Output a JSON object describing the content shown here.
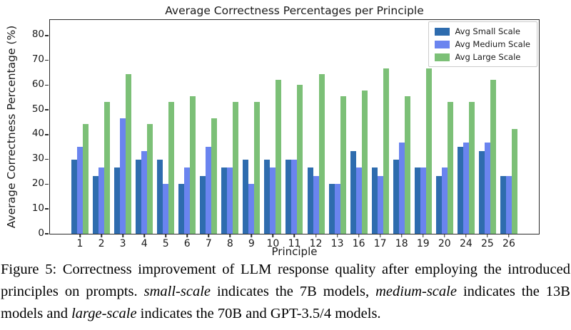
{
  "chart_data": {
    "type": "bar",
    "title": "Average Correctness Percentages per Principle",
    "xlabel": "Principle",
    "ylabel": "Average Correctness Percentage (%)",
    "categories": [
      "1",
      "2",
      "3",
      "4",
      "5",
      "6",
      "7",
      "8",
      "9",
      "10",
      "11",
      "12",
      "13",
      "16",
      "17",
      "18",
      "19",
      "20",
      "24",
      "25",
      "26"
    ],
    "series": [
      {
        "name": "Avg Small Scale",
        "color": "#2e6cae",
        "values": [
          30,
          23.3,
          26.7,
          30,
          30,
          20,
          23.3,
          26.7,
          30,
          30,
          30,
          26.7,
          20,
          33.3,
          26.7,
          30,
          26.7,
          23.3,
          35,
          33.3,
          23.3
        ]
      },
      {
        "name": "Avg Medium Scale",
        "color": "#6a84ef",
        "values": [
          35,
          26.7,
          46.7,
          33.3,
          20,
          26.7,
          35,
          26.7,
          20,
          26.7,
          30,
          23.3,
          20,
          26.7,
          23.3,
          36.7,
          26.7,
          26.7,
          36.7,
          36.7,
          23.3
        ]
      },
      {
        "name": "Avg Large Scale",
        "color": "#7cc077",
        "values": [
          44.4,
          53.3,
          64.4,
          44.4,
          53.3,
          55.6,
          46.7,
          53.3,
          53.3,
          62.2,
          60,
          64.4,
          55.6,
          57.8,
          66.7,
          55.6,
          66.7,
          53.3,
          53.3,
          62.2,
          42.2
        ]
      }
    ],
    "yticks": [
      0,
      10,
      20,
      30,
      40,
      50,
      60,
      70,
      80
    ],
    "ylim": [
      0,
      86
    ],
    "grid": false,
    "legend_position": "upper right",
    "axis_color": "#2b2b2b"
  },
  "caption": {
    "segments": [
      {
        "text": "Figure 5: Correctness improvement of LLM response quality after employing the introduced principles on prompts. ",
        "italic": false
      },
      {
        "text": "small-scale",
        "italic": true
      },
      {
        "text": " indicates the 7B models, ",
        "italic": false
      },
      {
        "text": "medium-scale",
        "italic": true
      },
      {
        "text": " indicates the 13B models and ",
        "italic": false
      },
      {
        "text": "large-scale",
        "italic": true
      },
      {
        "text": " indicates the 70B and GPT-3.5/4 models.",
        "italic": false
      }
    ]
  }
}
